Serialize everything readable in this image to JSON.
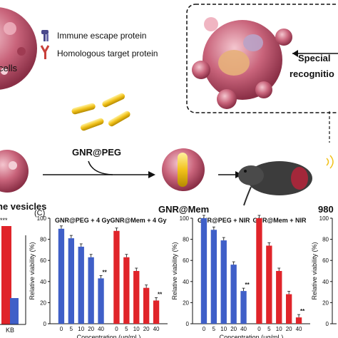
{
  "legend": {
    "immune_escape": "Immune escape protein",
    "homologous_target": "Homologous target protein"
  },
  "labels": {
    "cells_fragment": "cells",
    "vesicles_fragment": "ne vesicles",
    "gnr_peg": "GNR@PEG",
    "gnr_mem": "GNR@Mem",
    "special": "Special",
    "recognition": "recognitio",
    "wavelength_fragment": "980",
    "panel_c": "(C)",
    "kb": "KB",
    "sig_left": "***"
  },
  "colors": {
    "membrane": "#b3536b",
    "membrane_light": "#e8a9b6",
    "gold_rod": "#f2c21b",
    "peg_chain": "#9aa3a8",
    "blue_series": "#3f5fc8",
    "red_series": "#e0242a",
    "immune_escape_icon": "#4b4a8c",
    "homologous_target_icon": "#c8403a"
  },
  "chart_data": [
    {
      "type": "bar",
      "title": "",
      "ylabel": "Relative viability (%)",
      "xlabel": "Concentration (μg/mL)",
      "ylim": [
        0,
        100
      ],
      "yticks": [
        0,
        20,
        40,
        60,
        80,
        100
      ],
      "series": [
        {
          "name": "GNR@PEG + 4 Gy",
          "categories": [
            "0",
            "5",
            "10",
            "20",
            "40"
          ],
          "values": [
            90,
            81,
            73,
            63,
            43
          ],
          "sig": [
            "",
            "",
            "",
            "",
            "**"
          ]
        },
        {
          "name": "GNR@Mem + 4 Gy",
          "categories": [
            "0",
            "5",
            "10",
            "20",
            "40"
          ],
          "values": [
            88,
            63,
            50,
            34,
            22
          ],
          "sig": [
            "",
            "",
            "",
            "",
            "**"
          ]
        }
      ]
    },
    {
      "type": "bar",
      "title": "",
      "ylabel": "Relative viability (%)",
      "xlabel": "Concentration (μg/mL)",
      "ylim": [
        0,
        100
      ],
      "yticks": [
        0,
        20,
        40,
        60,
        80,
        100
      ],
      "series": [
        {
          "name": "GNR@PEG + NIR",
          "categories": [
            "0",
            "5",
            "10",
            "20",
            "40"
          ],
          "values": [
            100,
            89,
            79,
            56,
            31
          ],
          "sig": [
            "",
            "",
            "",
            "",
            "**"
          ]
        },
        {
          "name": "GNR@Mem + NIR",
          "categories": [
            "0",
            "5",
            "10",
            "20",
            "40"
          ],
          "values": [
            100,
            74,
            50,
            28,
            6
          ],
          "sig": [
            "",
            "",
            "",
            "",
            "**"
          ]
        }
      ]
    },
    {
      "type": "bar",
      "title": "",
      "ylabel": "Relative viability (%)",
      "xlabel": "",
      "ylim": [
        0,
        100
      ],
      "yticks": [
        0,
        20,
        40,
        60,
        80,
        100
      ],
      "series": []
    }
  ]
}
